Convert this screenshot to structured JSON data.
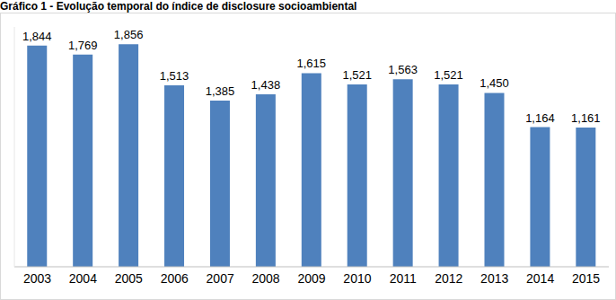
{
  "chart_data": {
    "type": "bar",
    "title": "Gráfico 1 - Evolução temporal do índice de disclosure socioambiental",
    "categories": [
      "2003",
      "2004",
      "2005",
      "2006",
      "2007",
      "2008",
      "2009",
      "2010",
      "2011",
      "2012",
      "2013",
      "2014",
      "2015"
    ],
    "values": [
      1.844,
      1.769,
      1.856,
      1.513,
      1.385,
      1.438,
      1.615,
      1.521,
      1.563,
      1.521,
      1.45,
      1.164,
      1.161
    ],
    "value_labels": [
      "1,844",
      "1,769",
      "1,856",
      "1,513",
      "1,385",
      "1,438",
      "1,615",
      "1,521",
      "1,563",
      "1,521",
      "1,450",
      "1,164",
      "1,161"
    ],
    "color": "#4f81bd",
    "ylim": [
      0,
      2
    ],
    "yticks": [],
    "data_labels": true,
    "tick_labels": "x",
    "grid": false
  }
}
